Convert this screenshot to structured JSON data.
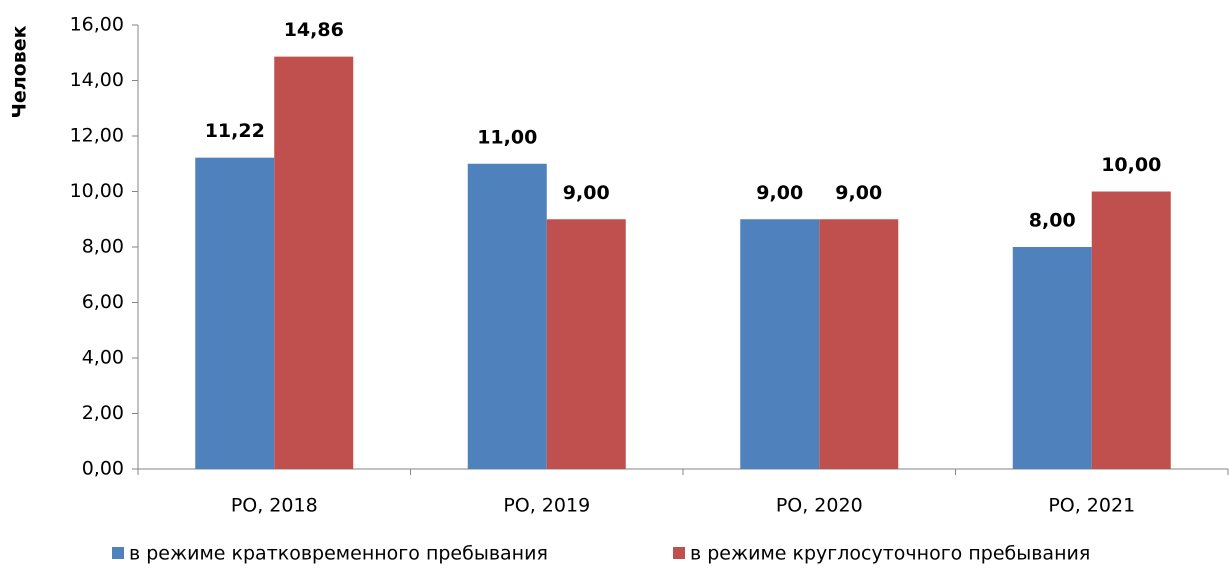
{
  "chart_data": {
    "type": "bar",
    "y_label": "Человек",
    "categories": [
      "РО, 2018",
      "РО, 2019",
      "РО, 2020",
      "РО, 2021"
    ],
    "series": [
      {
        "name": "в режиме кратковременного пребывания",
        "color": "#4f81bd",
        "values": [
          11.22,
          11,
          9,
          8
        ],
        "value_labels": [
          "11,22",
          "11,00",
          "9,00",
          "8,00"
        ]
      },
      {
        "name": "в режиме круглосуточного пребывания",
        "color": "#c0504d",
        "values": [
          14.86,
          9,
          9,
          10
        ],
        "value_labels": [
          "14,86",
          "9,00",
          "9,00",
          "10,00"
        ]
      }
    ],
    "ylim": [
      0,
      16
    ],
    "yticks": [
      {
        "value": 0,
        "label": "0,00"
      },
      {
        "value": 2,
        "label": "2,00"
      },
      {
        "value": 4,
        "label": "4,00"
      },
      {
        "value": 6,
        "label": "6,00"
      },
      {
        "value": 8,
        "label": "8,00"
      },
      {
        "value": 10,
        "label": "10,00"
      },
      {
        "value": 12,
        "label": "12,00"
      },
      {
        "value": 14,
        "label": "14,00"
      },
      {
        "value": 16,
        "label": "16,00"
      }
    ],
    "legend": "bottom"
  }
}
